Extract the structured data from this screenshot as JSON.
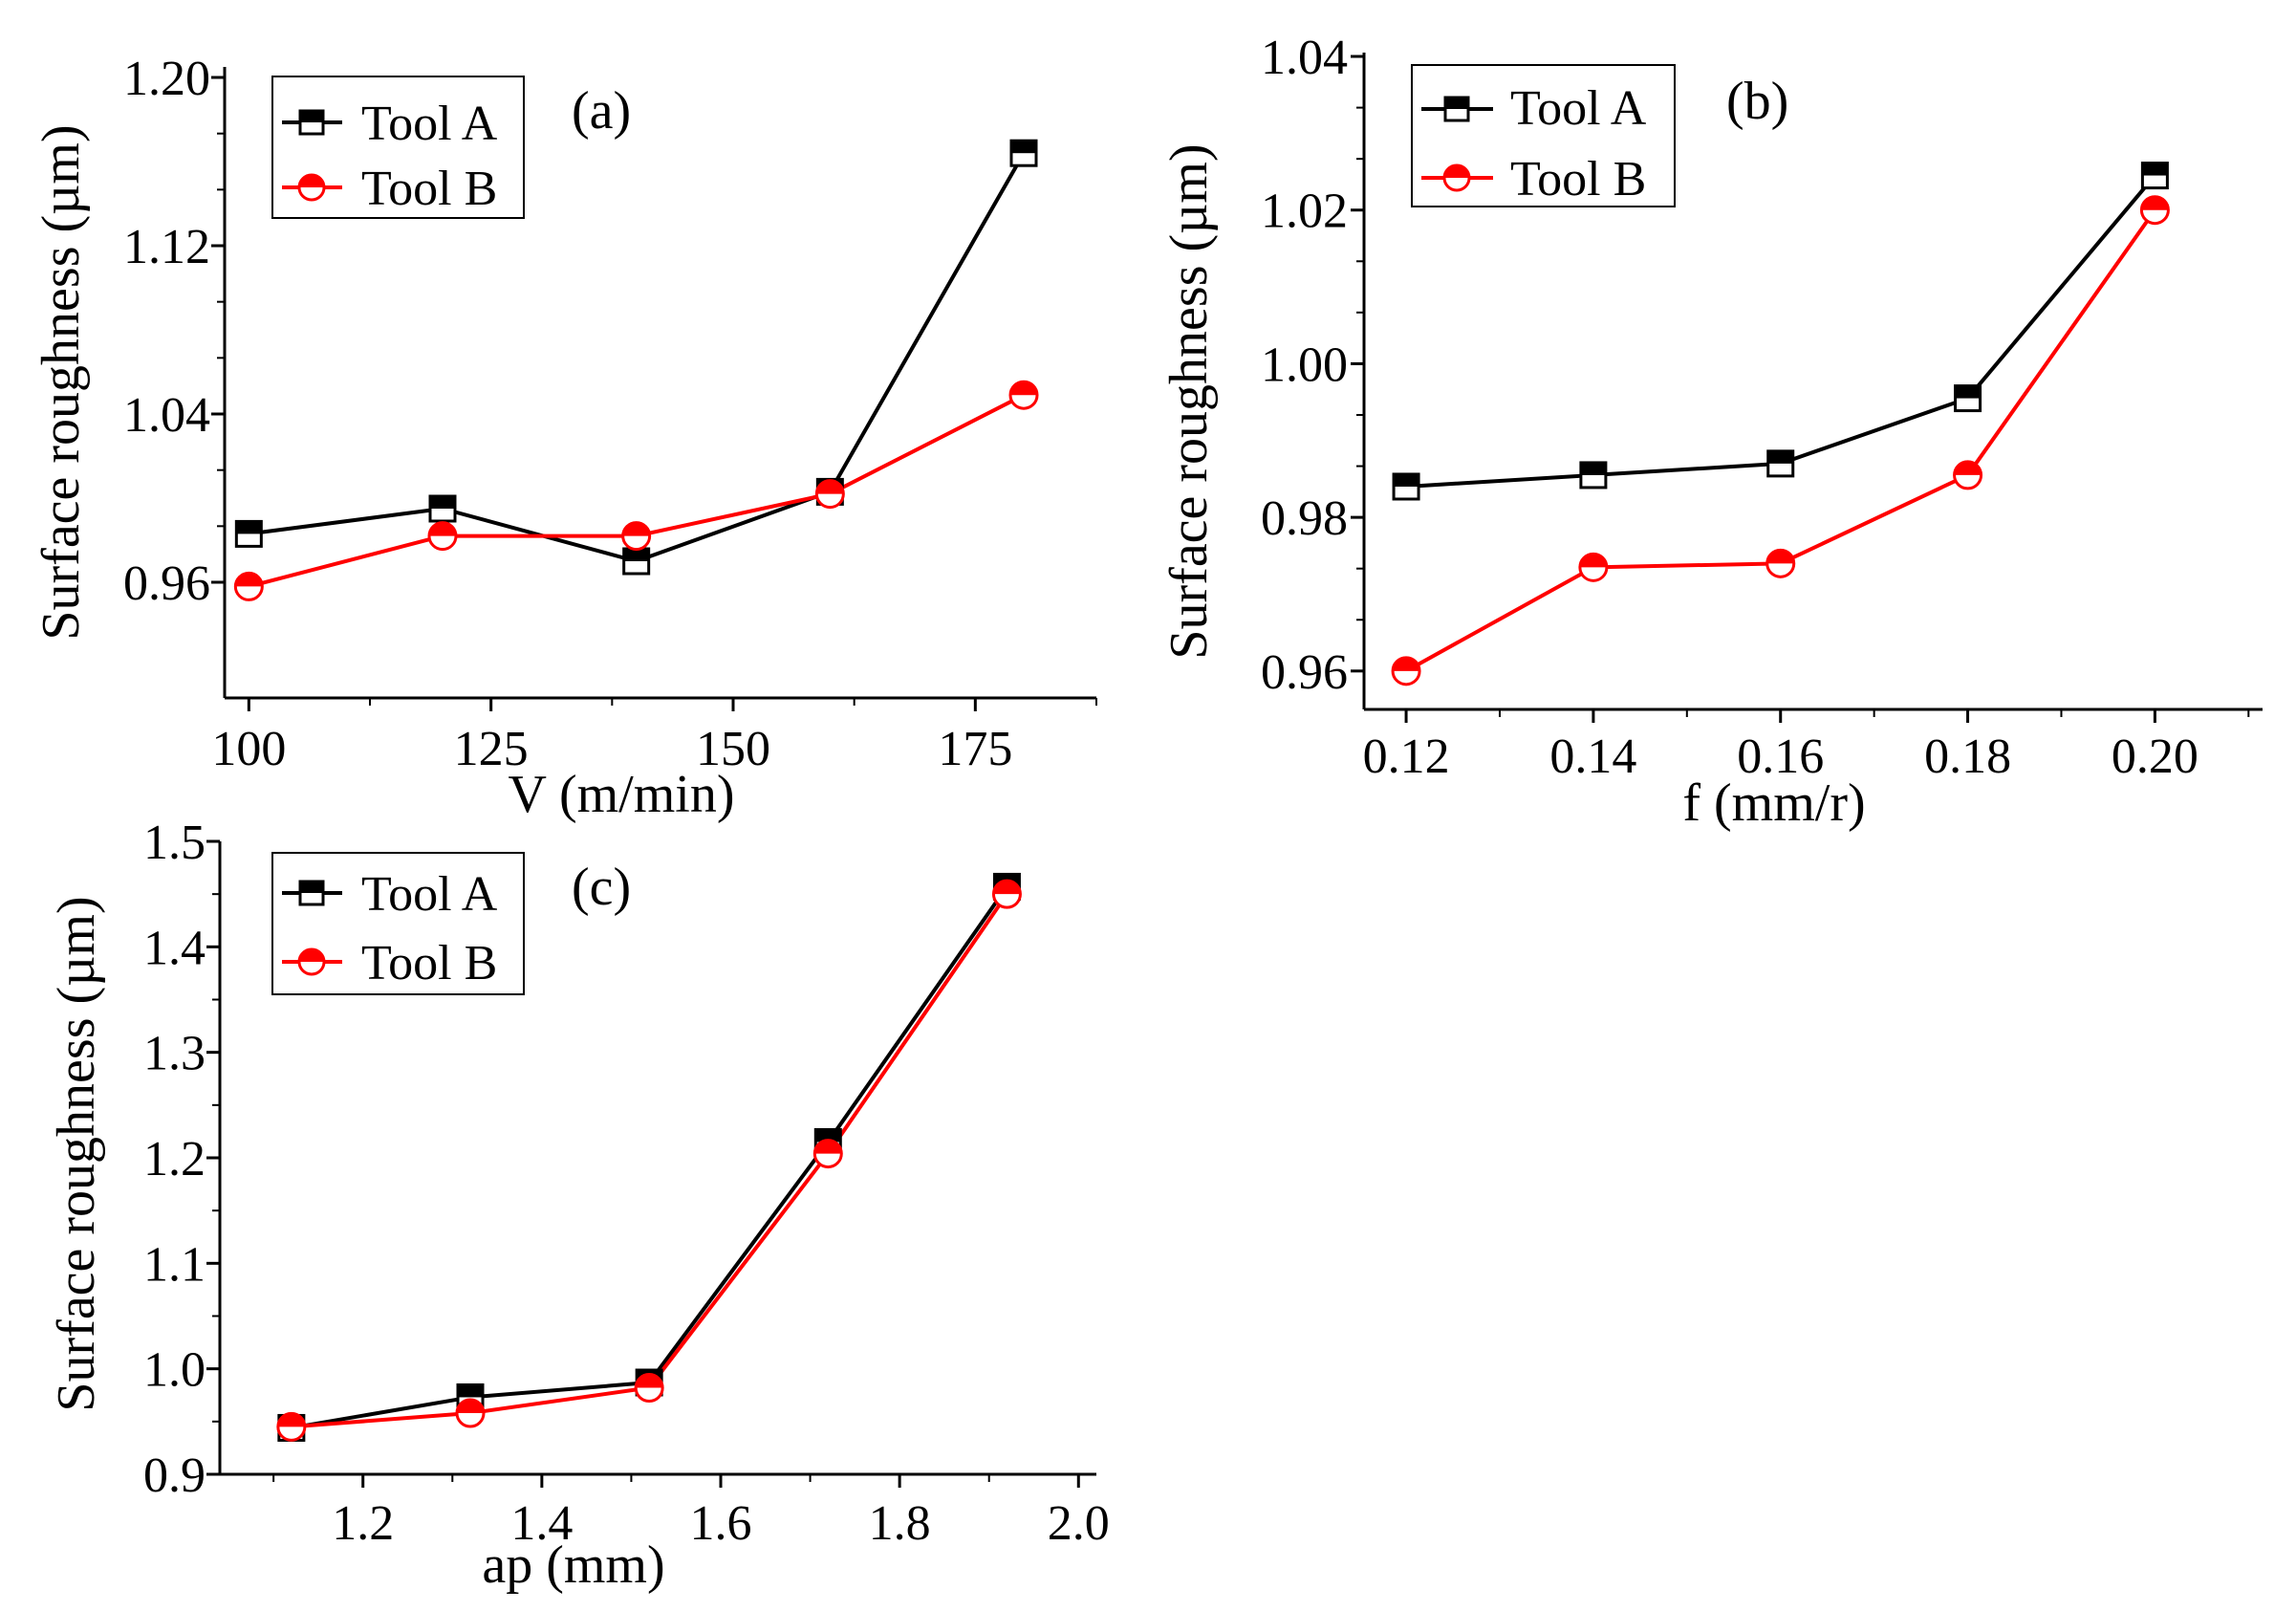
{
  "chart_data": [
    {
      "type": "line",
      "panel_label": "(a)",
      "xlabel": "V (m/min)",
      "ylabel": "Surface roughness (µm)",
      "xlim": [
        97.5,
        187.5
      ],
      "ylim": [
        0.905,
        1.205
      ],
      "xticks": [
        100,
        125,
        150,
        175
      ],
      "xtick_labels": [
        "100",
        "125",
        "150",
        "175"
      ],
      "yticks": [
        0.96,
        1.04,
        1.12,
        1.2
      ],
      "ytick_labels": [
        "0.96",
        "1.04",
        "1.12",
        "1.20"
      ],
      "x": [
        100,
        120,
        140,
        160,
        180
      ],
      "series": [
        {
          "name": "Tool A",
          "color": "#000000",
          "marker": "square",
          "values": [
            0.983,
            0.995,
            0.97,
            1.003,
            1.164
          ]
        },
        {
          "name": "Tool B",
          "color": "#ff0000",
          "marker": "circle",
          "values": [
            0.958,
            0.982,
            0.982,
            1.002,
            1.049
          ]
        }
      ],
      "legend_position": "top-left"
    },
    {
      "type": "line",
      "panel_label": "(b)",
      "xlabel": "f (mm/r)",
      "ylabel": "Surface roughness (µm)",
      "xlim": [
        0.1155,
        0.2115
      ],
      "ylim": [
        0.955,
        1.0405
      ],
      "xticks": [
        0.12,
        0.14,
        0.16,
        0.18,
        0.2
      ],
      "xtick_labels": [
        "0.12",
        "0.14",
        "0.16",
        "0.18",
        "0.20"
      ],
      "yticks": [
        0.96,
        0.98,
        1.0,
        1.02,
        1.04
      ],
      "ytick_labels": [
        "0.96",
        "0.98",
        "1.00",
        "1.02",
        "1.04"
      ],
      "x": [
        0.12,
        0.14,
        0.16,
        0.18,
        0.2
      ],
      "series": [
        {
          "name": "Tool A",
          "color": "#000000",
          "marker": "square",
          "values": [
            0.984,
            0.9855,
            0.987,
            0.9955,
            1.0245
          ]
        },
        {
          "name": "Tool B",
          "color": "#ff0000",
          "marker": "circle",
          "values": [
            0.96,
            0.9735,
            0.974,
            0.9855,
            1.02
          ]
        }
      ],
      "legend_position": "top-left"
    },
    {
      "type": "line",
      "panel_label": "(c)",
      "xlabel": "ap (mm)",
      "ylabel": "Surface roughness (µm)",
      "xlim": [
        1.04,
        2.02
      ],
      "ylim": [
        0.9,
        1.5
      ],
      "xticks": [
        1.2,
        1.4,
        1.6,
        1.8,
        2.0
      ],
      "xtick_labels": [
        "1.2",
        "1.4",
        "1.6",
        "1.8",
        "2.0"
      ],
      "yticks": [
        0.9,
        1.0,
        1.1,
        1.2,
        1.3,
        1.4,
        1.5
      ],
      "ytick_labels": [
        "0.9",
        "1.0",
        "1.1",
        "1.2",
        "1.3",
        "1.4",
        "1.5"
      ],
      "x": [
        1.12,
        1.32,
        1.52,
        1.72,
        1.92
      ],
      "series": [
        {
          "name": "Tool A",
          "color": "#000000",
          "marker": "square",
          "values": [
            0.944,
            0.973,
            0.987,
            1.215,
            1.457
          ]
        },
        {
          "name": "Tool B",
          "color": "#ff0000",
          "marker": "circle",
          "values": [
            0.945,
            0.958,
            0.982,
            1.204,
            1.45
          ]
        }
      ],
      "legend_position": "top-left"
    }
  ]
}
